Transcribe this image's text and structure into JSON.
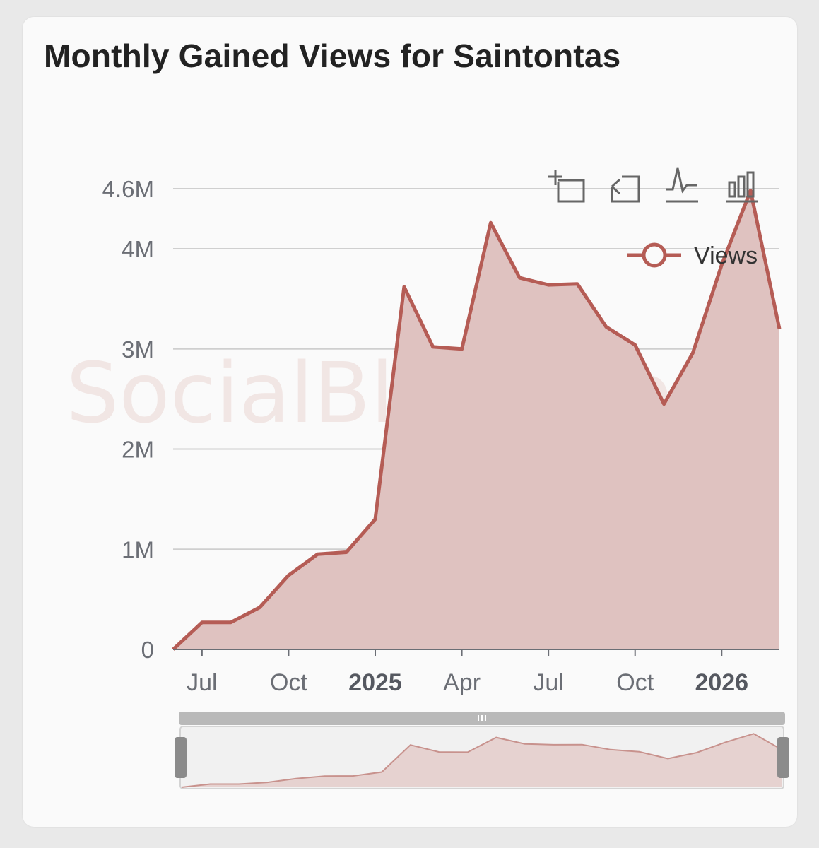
{
  "title": "Monthly Gained Views for Saintontas",
  "watermark": "SocialBlade.com",
  "toolbox": [
    {
      "name": "zoom-icon",
      "label": "Zoom"
    },
    {
      "name": "zoom-reset-icon",
      "label": "Zoom reset"
    },
    {
      "name": "line-chart-icon",
      "label": "Switch to line"
    },
    {
      "name": "bar-chart-icon",
      "label": "Switch to bar"
    }
  ],
  "colors": {
    "line": "#b55c55",
    "area": "#dfc2c0",
    "grid": "#cfcfcf",
    "card": "#fafafa"
  },
  "chart_data": {
    "type": "area",
    "title": "Monthly Gained Views for Saintontas",
    "x_ticks": [
      {
        "label": "Jul",
        "date": "2024-07",
        "bold": false
      },
      {
        "label": "Oct",
        "date": "2024-10",
        "bold": false
      },
      {
        "label": "2025",
        "date": "2025-01",
        "bold": true
      },
      {
        "label": "Apr",
        "date": "2025-04",
        "bold": false
      },
      {
        "label": "Jul",
        "date": "2025-07",
        "bold": false
      },
      {
        "label": "Oct",
        "date": "2025-10",
        "bold": false
      },
      {
        "label": "2026",
        "date": "2026-01",
        "bold": true
      }
    ],
    "y_ticks": [
      {
        "label": "0",
        "value": 0
      },
      {
        "label": "1M",
        "value": 1000000
      },
      {
        "label": "2M",
        "value": 2000000
      },
      {
        "label": "3M",
        "value": 3000000
      },
      {
        "label": "4M",
        "value": 4000000
      },
      {
        "label": "4.6M",
        "value": 4600000
      }
    ],
    "ylim": [
      0,
      4600000
    ],
    "xlim": [
      "2024-06",
      "2026-03"
    ],
    "grid": true,
    "legend_position": "top-right",
    "series": [
      {
        "name": "Views",
        "x": [
          "2024-06",
          "2024-07",
          "2024-08",
          "2024-09",
          "2024-10",
          "2024-11",
          "2024-12",
          "2025-01",
          "2025-02",
          "2025-03",
          "2025-04",
          "2025-05",
          "2025-06",
          "2025-07",
          "2025-08",
          "2025-09",
          "2025-10",
          "2025-11",
          "2025-12",
          "2026-01",
          "2026-02",
          "2026-03"
        ],
        "values": [
          0,
          270000,
          270000,
          420000,
          740000,
          950000,
          970000,
          1300000,
          3620000,
          3020000,
          3000000,
          4260000,
          3710000,
          3640000,
          3650000,
          3220000,
          3040000,
          2450000,
          2960000,
          3840000,
          4580000,
          3200000
        ]
      }
    ]
  }
}
